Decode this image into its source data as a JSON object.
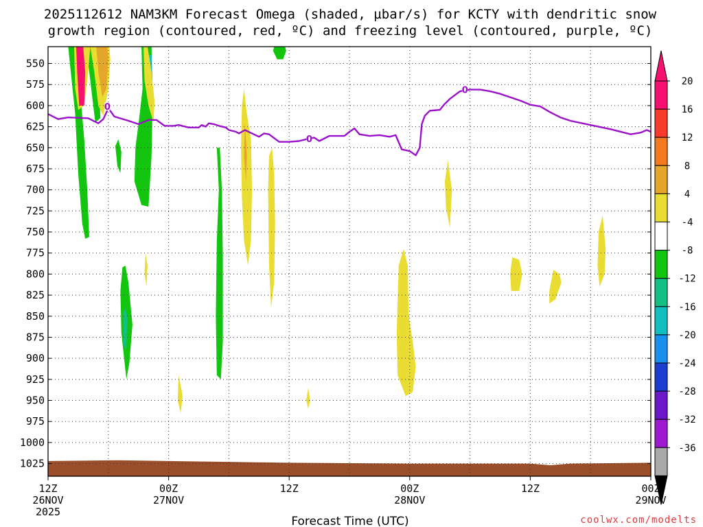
{
  "chart_data": {
    "type": "contour",
    "title_line1": "2025112612 NAM3KM Forecast Omega (shaded, µbar/s) for KCTY with dendritic snow",
    "title_line2": "growth region (contoured, red, ºC) and freezing level (contoured, purple, ºC)",
    "xlabel": "Forecast Time (UTC)",
    "credit": "coolwx.com/modelts",
    "x_ticks": [
      {
        "h": 0,
        "l1": "12Z",
        "l2": "26NOV",
        "l3": "2025"
      },
      {
        "h": 12,
        "l1": "00Z",
        "l2": "27NOV",
        "l3": ""
      },
      {
        "h": 24,
        "l1": "12Z",
        "l2": "",
        "l3": ""
      },
      {
        "h": 36,
        "l1": "00Z",
        "l2": "28NOV",
        "l3": ""
      },
      {
        "h": 48,
        "l1": "12Z",
        "l2": "",
        "l3": ""
      },
      {
        "h": 60,
        "l1": "00Z",
        "l2": "29NOV",
        "l3": ""
      }
    ],
    "y_ticks": [
      550,
      575,
      600,
      625,
      650,
      675,
      700,
      725,
      750,
      775,
      800,
      825,
      850,
      875,
      900,
      925,
      950,
      975,
      1000,
      1025
    ],
    "xlim_hours": [
      0,
      60
    ],
    "colorbar_labels": [
      "20",
      "16",
      "12",
      "8",
      "4",
      "-4",
      "-8",
      "-12",
      "-16",
      "-20",
      "-24",
      "-28",
      "-32",
      "-36"
    ],
    "colorbar_colors": [
      "#f81070",
      "#f83b2c",
      "#f57a1e",
      "#e5a72b",
      "#e9dd33",
      "#ffffff",
      "#13c50f",
      "#12c083",
      "#12bfc0",
      "#1891ee",
      "#1c3ed0",
      "#6a18c8",
      "#9e1ad0",
      "#a9a9a9"
    ],
    "freezing_level_label": "0",
    "freezing_level": [
      [
        0,
        610
      ],
      [
        1,
        616
      ],
      [
        2,
        614
      ],
      [
        4,
        615
      ],
      [
        5,
        621
      ],
      [
        5.5,
        616
      ],
      [
        6,
        603
      ],
      [
        6.6,
        613
      ],
      [
        8,
        618
      ],
      [
        9,
        622
      ],
      [
        10,
        617
      ],
      [
        10.8,
        617
      ],
      [
        11.6,
        624
      ],
      [
        12.5,
        624
      ],
      [
        13,
        623
      ],
      [
        14,
        626
      ],
      [
        15,
        626
      ],
      [
        15.3,
        623
      ],
      [
        15.7,
        625
      ],
      [
        16,
        621
      ],
      [
        16.5,
        622
      ],
      [
        17,
        624
      ],
      [
        17.7,
        626
      ],
      [
        18,
        629
      ],
      [
        18.7,
        631
      ],
      [
        19,
        633
      ],
      [
        19.6,
        629
      ],
      [
        20.3,
        633
      ],
      [
        21,
        637
      ],
      [
        21.5,
        633
      ],
      [
        22,
        634
      ],
      [
        23,
        643
      ],
      [
        24,
        643
      ],
      [
        25,
        642
      ],
      [
        26,
        639
      ],
      [
        26.5,
        638
      ],
      [
        27,
        642
      ],
      [
        28,
        636
      ],
      [
        29.5,
        636
      ],
      [
        30,
        631
      ],
      [
        30.5,
        627
      ],
      [
        31,
        634
      ],
      [
        32,
        636
      ],
      [
        33,
        635
      ],
      [
        34,
        637
      ],
      [
        34.6,
        635
      ],
      [
        35.2,
        652
      ],
      [
        36,
        654
      ],
      [
        36.6,
        659
      ],
      [
        37,
        650
      ],
      [
        37.2,
        622
      ],
      [
        37.5,
        612
      ],
      [
        38,
        606
      ],
      [
        39,
        605
      ],
      [
        39.4,
        599
      ],
      [
        40,
        592
      ],
      [
        41,
        583
      ],
      [
        42,
        581
      ],
      [
        43,
        581
      ],
      [
        44,
        583
      ],
      [
        45,
        586
      ],
      [
        47,
        594
      ],
      [
        48,
        599
      ],
      [
        49,
        601
      ],
      [
        50,
        608
      ],
      [
        51,
        614
      ],
      [
        52,
        618
      ],
      [
        54,
        623
      ],
      [
        56,
        628
      ],
      [
        58,
        634
      ],
      [
        59,
        632
      ],
      [
        59.6,
        629
      ],
      [
        60,
        631
      ]
    ],
    "omega_regions": [
      {
        "color": "#13c50f",
        "pts": [
          [
            2.0,
            530
          ],
          [
            2.7,
            610
          ],
          [
            3.0,
            680
          ],
          [
            3.4,
            740
          ],
          [
            3.7,
            758
          ],
          [
            4.1,
            756
          ],
          [
            3.9,
            700
          ],
          [
            3.6,
            640
          ],
          [
            3.1,
            570
          ],
          [
            2.7,
            530
          ]
        ]
      },
      {
        "color": "#13c50f",
        "pts": [
          [
            3.8,
            530
          ],
          [
            4.1,
            560
          ],
          [
            4.5,
            600
          ],
          [
            4.7,
            620
          ],
          [
            5.2,
            615
          ],
          [
            5.1,
            570
          ],
          [
            4.8,
            530
          ]
        ]
      },
      {
        "color": "#13c50f",
        "pts": [
          [
            6.7,
            648
          ],
          [
            6.9,
            672
          ],
          [
            7.2,
            680
          ],
          [
            7.3,
            655
          ],
          [
            7.0,
            640
          ]
        ]
      },
      {
        "color": "#13c50f",
        "pts": [
          [
            9.3,
            530
          ],
          [
            9.4,
            580
          ],
          [
            9.1,
            612
          ],
          [
            8.7,
            650
          ],
          [
            8.6,
            690
          ],
          [
            9.3,
            718
          ],
          [
            10.0,
            720
          ],
          [
            10.3,
            660
          ],
          [
            10.4,
            600
          ],
          [
            10.3,
            530
          ]
        ]
      },
      {
        "color": "#13c50f",
        "pts": [
          [
            16.8,
            650
          ],
          [
            17.0,
            700
          ],
          [
            16.8,
            760
          ],
          [
            16.7,
            850
          ],
          [
            16.8,
            920
          ],
          [
            17.2,
            925
          ],
          [
            17.4,
            880
          ],
          [
            17.4,
            780
          ],
          [
            17.3,
            700
          ],
          [
            17.1,
            650
          ]
        ]
      },
      {
        "color": "#13c50f",
        "pts": [
          [
            7.4,
            792
          ],
          [
            7.2,
            820
          ],
          [
            7.3,
            870
          ],
          [
            7.8,
            925
          ],
          [
            8.1,
            905
          ],
          [
            8.4,
            860
          ],
          [
            8.0,
            810
          ],
          [
            7.7,
            790
          ]
        ]
      },
      {
        "color": "#13c50f",
        "pts": [
          [
            22.4,
            535
          ],
          [
            22.8,
            545
          ],
          [
            23.4,
            545
          ],
          [
            23.7,
            535
          ],
          [
            23.6,
            530
          ],
          [
            22.5,
            530
          ]
        ]
      },
      {
        "color": "#12c083",
        "pts": [
          [
            7.5,
            845
          ],
          [
            7.5,
            885
          ],
          [
            7.8,
            890
          ],
          [
            7.9,
            852
          ],
          [
            7.7,
            840
          ]
        ]
      },
      {
        "color": "#12bfc0",
        "pts": [
          [
            10.0,
            540
          ],
          [
            9.9,
            570
          ],
          [
            10.1,
            585
          ],
          [
            10.4,
            570
          ],
          [
            10.3,
            540
          ]
        ]
      },
      {
        "color": "#e9dd33",
        "pts": [
          [
            2.6,
            530
          ],
          [
            2.7,
            580
          ],
          [
            3.0,
            605
          ],
          [
            3.6,
            600
          ],
          [
            4.0,
            560
          ],
          [
            4.2,
            530
          ]
        ]
      },
      {
        "color": "#e9dd33",
        "pts": [
          [
            4.2,
            530
          ],
          [
            4.6,
            560
          ],
          [
            5.0,
            600
          ],
          [
            5.5,
            612
          ],
          [
            6.0,
            580
          ],
          [
            6.2,
            545
          ],
          [
            6.1,
            530
          ]
        ]
      },
      {
        "color": "#e9dd33",
        "pts": [
          [
            9.9,
            530
          ],
          [
            10.3,
            560
          ],
          [
            10.6,
            595
          ],
          [
            10.5,
            620
          ],
          [
            10.0,
            600
          ],
          [
            9.6,
            570
          ],
          [
            9.5,
            530
          ]
        ]
      },
      {
        "color": "#e5a72b",
        "pts": [
          [
            2.8,
            530
          ],
          [
            2.9,
            555
          ],
          [
            3.4,
            570
          ],
          [
            3.6,
            545
          ],
          [
            3.5,
            530
          ]
        ]
      },
      {
        "color": "#e5a72b",
        "pts": [
          [
            4.8,
            530
          ],
          [
            5.0,
            560
          ],
          [
            5.4,
            590
          ],
          [
            5.8,
            580
          ],
          [
            6.0,
            545
          ],
          [
            5.9,
            530
          ]
        ]
      },
      {
        "color": "#f81070",
        "pts": [
          [
            2.8,
            530
          ],
          [
            2.9,
            560
          ],
          [
            3.1,
            600
          ],
          [
            3.6,
            600
          ],
          [
            3.7,
            560
          ],
          [
            3.5,
            530
          ]
        ]
      },
      {
        "color": "#e9dd33",
        "pts": [
          [
            19.5,
            580
          ],
          [
            19.8,
            610
          ],
          [
            20.2,
            640
          ],
          [
            20.3,
            700
          ],
          [
            20.2,
            760
          ],
          [
            19.9,
            790
          ],
          [
            19.5,
            760
          ],
          [
            19.3,
            710
          ],
          [
            19.2,
            650
          ],
          [
            19.3,
            600
          ]
        ]
      },
      {
        "color": "#e5a72b",
        "pts": [
          [
            19.6,
            620
          ],
          [
            19.8,
            660
          ],
          [
            19.7,
            690
          ],
          [
            19.5,
            660
          ]
        ]
      },
      {
        "color": "#e9dd33",
        "pts": [
          [
            22.3,
            650
          ],
          [
            22.5,
            680
          ],
          [
            22.6,
            740
          ],
          [
            22.5,
            810
          ],
          [
            22.2,
            840
          ],
          [
            22.0,
            790
          ],
          [
            21.9,
            700
          ],
          [
            22.0,
            660
          ]
        ]
      },
      {
        "color": "#e9dd33",
        "pts": [
          [
            9.7,
            775
          ],
          [
            9.9,
            790
          ],
          [
            9.8,
            815
          ],
          [
            9.6,
            800
          ]
        ]
      },
      {
        "color": "#e9dd33",
        "pts": [
          [
            13.0,
            920
          ],
          [
            13.4,
            945
          ],
          [
            13.2,
            965
          ],
          [
            12.9,
            950
          ]
        ]
      },
      {
        "color": "#e9dd33",
        "pts": [
          [
            25.9,
            935
          ],
          [
            26.1,
            950
          ],
          [
            25.9,
            960
          ],
          [
            25.7,
            950
          ]
        ]
      },
      {
        "color": "#e9dd33",
        "pts": [
          [
            34.9,
            790
          ],
          [
            35.4,
            770
          ],
          [
            35.8,
            790
          ],
          [
            35.9,
            850
          ],
          [
            36.3,
            880
          ],
          [
            36.6,
            910
          ],
          [
            36.3,
            940
          ],
          [
            35.6,
            945
          ],
          [
            34.8,
            920
          ],
          [
            34.7,
            870
          ]
        ]
      },
      {
        "color": "#e9dd33",
        "pts": [
          [
            39.8,
            665
          ],
          [
            40.2,
            700
          ],
          [
            40.0,
            745
          ],
          [
            39.6,
            720
          ],
          [
            39.5,
            690
          ]
        ]
      },
      {
        "color": "#e9dd33",
        "pts": [
          [
            46.2,
            780
          ],
          [
            46.9,
            783
          ],
          [
            47.2,
            800
          ],
          [
            46.9,
            820
          ],
          [
            46.1,
            820
          ],
          [
            46.0,
            800
          ]
        ]
      },
      {
        "color": "#e9dd33",
        "pts": [
          [
            50.3,
            795
          ],
          [
            50.9,
            800
          ],
          [
            51.1,
            810
          ],
          [
            50.5,
            830
          ],
          [
            49.9,
            835
          ],
          [
            49.9,
            820
          ]
        ]
      },
      {
        "color": "#e9dd33",
        "pts": [
          [
            55.2,
            730
          ],
          [
            55.5,
            770
          ],
          [
            55.4,
            800
          ],
          [
            54.9,
            815
          ],
          [
            54.7,
            790
          ],
          [
            54.8,
            750
          ]
        ]
      }
    ]
  }
}
